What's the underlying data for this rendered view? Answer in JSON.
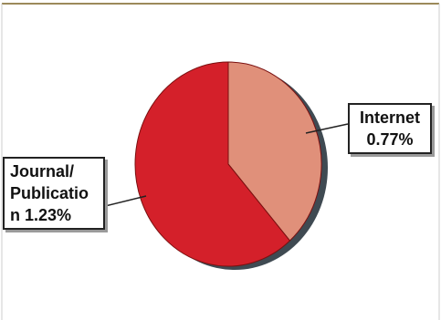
{
  "chart_data": {
    "type": "pie",
    "title": "",
    "slices": [
      {
        "label": "Internet",
        "display_label": "Internet\n0.77%",
        "value": 0.77,
        "color": "#e0907a"
      },
      {
        "label": "Journal/Publication",
        "display_label": "Journal/\nPublicatio\nn 1.23%",
        "value": 1.23,
        "color": "#d4202a"
      }
    ],
    "shadow_color": "#3f4a52",
    "frame_line_color": "#9c8a5a",
    "legend": "none",
    "grid": false
  }
}
